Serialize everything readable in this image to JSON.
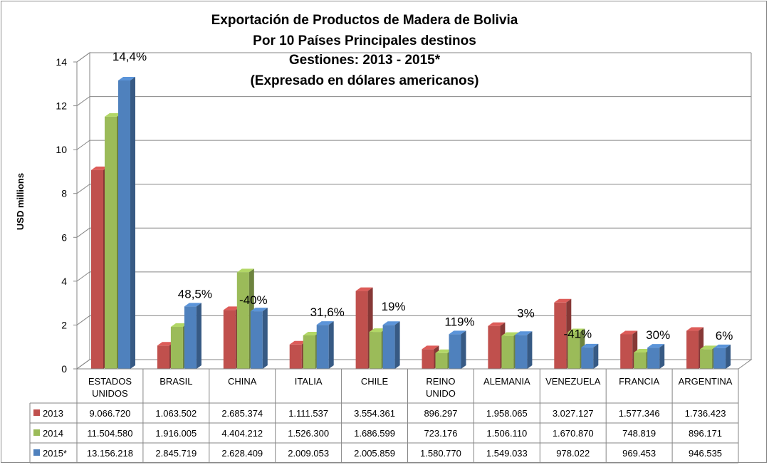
{
  "chart_data": {
    "type": "bar",
    "title_lines": [
      "Exportación de Productos de Madera de Bolivia",
      "Por 10 Países Principales destinos",
      "Gestiones: 2013 - 2015*",
      "(Expresado en dólares americanos)"
    ],
    "ylabel": "USD millions",
    "ylim": [
      0,
      14
    ],
    "yticks": [
      0,
      2,
      4,
      6,
      8,
      10,
      12,
      14
    ],
    "categories": [
      [
        "ESTADOS",
        "UNIDOS"
      ],
      [
        "BRASIL"
      ],
      [
        "CHINA"
      ],
      [
        "ITALIA"
      ],
      [
        "CHILE"
      ],
      [
        "REINO",
        "UNIDO"
      ],
      [
        "ALEMANIA"
      ],
      [
        "VENEZUELA"
      ],
      [
        "FRANCIA"
      ],
      [
        "ARGENTINA"
      ]
    ],
    "series": [
      {
        "name": "2013",
        "color": "#c0504d",
        "values": [
          9.06672,
          1.063502,
          2.685374,
          1.111537,
          3.554361,
          0.896297,
          1.958065,
          3.027127,
          1.577346,
          1.736423
        ],
        "labels": [
          "9.066.720",
          "1.063.502",
          "2.685.374",
          "1.111.537",
          "3.554.361",
          "896.297",
          "1.958.065",
          "3.027.127",
          "1.577.346",
          "1.736.423"
        ]
      },
      {
        "name": "2014",
        "color": "#9bbb59",
        "values": [
          11.50458,
          1.916005,
          4.404212,
          1.5263,
          1.686599,
          0.723176,
          1.50611,
          1.67087,
          0.748819,
          0.896171
        ],
        "labels": [
          "11.504.580",
          "1.916.005",
          "4.404.212",
          "1.526.300",
          "1.686.599",
          "723.176",
          "1.506.110",
          "1.670.870",
          "748.819",
          "896.171"
        ]
      },
      {
        "name": "2015*",
        "color": "#4f81bd",
        "values": [
          13.156218,
          2.845719,
          2.628409,
          2.009053,
          2.005859,
          1.58077,
          1.549033,
          0.978022,
          0.969453,
          0.946535
        ],
        "labels": [
          "13.156.218",
          "2.845.719",
          "2.628.409",
          "2.009.053",
          "2.005.859",
          "1.580.770",
          "1.549.033",
          "978.022",
          "969.453",
          "946.535"
        ]
      }
    ],
    "annotations": [
      "14,4%",
      "48,5%",
      "-40%",
      "31,6%",
      "19%",
      "119%",
      "3%",
      "-41%",
      "30%",
      "6%"
    ],
    "grid": true,
    "legend": "data-table"
  }
}
